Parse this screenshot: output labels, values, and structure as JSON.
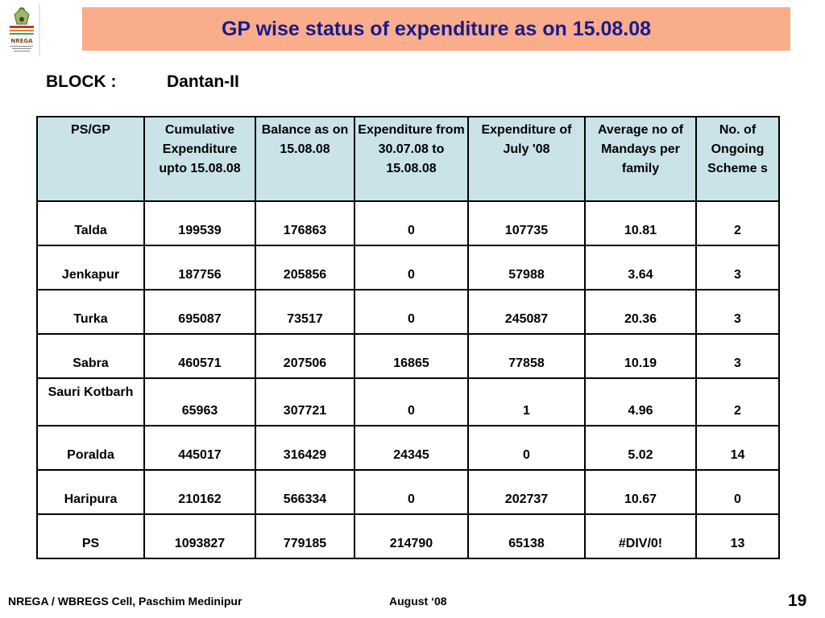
{
  "header": {
    "title": "GP wise status of expenditure as on 15.08.08",
    "logo_text": "NREGA"
  },
  "block": {
    "label": "BLOCK :",
    "value": "Dantan-II"
  },
  "table": {
    "columns": [
      "PS/GP",
      "Cumulative Expenditure upto 15.08.08",
      "Balance as on 15.08.08",
      "Expenditure from 30.07.08 to 15.08.08",
      "Expenditure of  July '08",
      "Average no of Mandays per family",
      "No. of Ongoing Scheme s"
    ],
    "rows": [
      [
        "Talda",
        "199539",
        "176863",
        "0",
        "107735",
        "10.81",
        "2"
      ],
      [
        "Jenkapur",
        "187756",
        "205856",
        "0",
        "57988",
        "3.64",
        "3"
      ],
      [
        "Turka",
        "695087",
        "73517",
        "0",
        "245087",
        "20.36",
        "3"
      ],
      [
        "Sabra",
        "460571",
        "207506",
        "16865",
        "77858",
        "10.19",
        "3"
      ],
      [
        "Sauri Kotbarh",
        "65963",
        "307721",
        "0",
        "1",
        "4.96",
        "2"
      ],
      [
        "Poralda",
        "445017",
        "316429",
        "24345",
        "0",
        "5.02",
        "14"
      ],
      [
        "Haripura",
        "210162",
        "566334",
        "0",
        "202737",
        "10.67",
        "0"
      ],
      [
        "PS",
        "1093827",
        "779185",
        "214790",
        "65138",
        "#DIV/0!",
        "13"
      ]
    ]
  },
  "footer": {
    "left": "NREGA / WBREGS Cell, Paschim Medinipur",
    "middle": "August ‘08",
    "page_number": "19"
  },
  "colors": {
    "title_bg": "#f9ad8b",
    "title_text": "#1a1a8a",
    "header_bg": "#c9e3e9"
  }
}
